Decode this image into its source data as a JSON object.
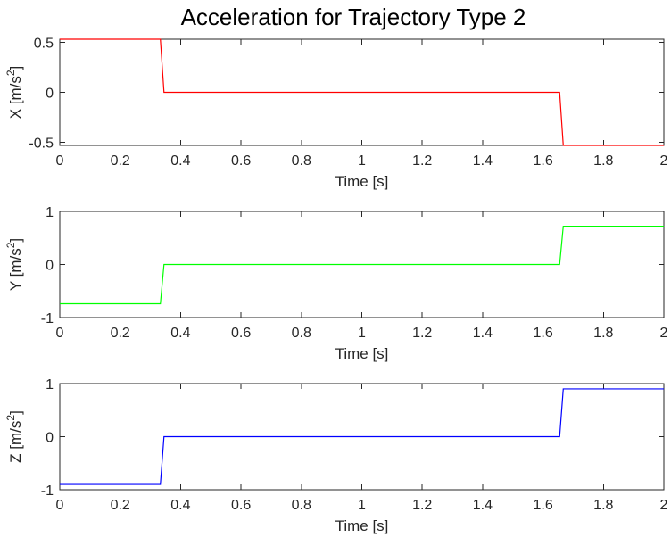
{
  "chart_data": {
    "type": "line",
    "title": "Acceleration for Trajectory Type 2",
    "subplots": [
      {
        "id": "x",
        "xlabel": "Time [s]",
        "ylabel_base": "X [m/s",
        "ylabel_exp": "2",
        "ylabel_close": "]",
        "xlim": [
          0,
          2
        ],
        "ylim": [
          -0.53,
          0.53
        ],
        "xticks": [
          0,
          0.2,
          0.4,
          0.6,
          0.8,
          1,
          1.2,
          1.4,
          1.6,
          1.8,
          2
        ],
        "xtick_labels": [
          "0",
          "0.2",
          "0.4",
          "0.6",
          "0.8",
          "1",
          "1.2",
          "1.4",
          "1.6",
          "1.8",
          "2"
        ],
        "yticks": [
          -0.5,
          0,
          0.5
        ],
        "ytick_labels": [
          "-0.5",
          "0",
          "0.5"
        ],
        "color": "#ff0000",
        "x": [
          0,
          0.333,
          0.345,
          1.655,
          1.667,
          2
        ],
        "y": [
          0.53,
          0.53,
          0,
          0,
          -0.53,
          -0.53
        ]
      },
      {
        "id": "y",
        "xlabel": "Time [s]",
        "ylabel_base": "Y [m/s",
        "ylabel_exp": "2",
        "ylabel_close": "]",
        "xlim": [
          0,
          2
        ],
        "ylim": [
          -1,
          1
        ],
        "xticks": [
          0,
          0.2,
          0.4,
          0.6,
          0.8,
          1,
          1.2,
          1.4,
          1.6,
          1.8,
          2
        ],
        "xtick_labels": [
          "0",
          "0.2",
          "0.4",
          "0.6",
          "0.8",
          "1",
          "1.2",
          "1.4",
          "1.6",
          "1.8",
          "2"
        ],
        "yticks": [
          -1,
          0,
          1
        ],
        "ytick_labels": [
          "-1",
          "0",
          "1"
        ],
        "color": "#00ff00",
        "x": [
          0,
          0.333,
          0.345,
          1.655,
          1.667,
          2
        ],
        "y": [
          -0.74,
          -0.74,
          0,
          0,
          0.72,
          0.72
        ]
      },
      {
        "id": "z",
        "xlabel": "Time [s]",
        "ylabel_base": "Z [m/s",
        "ylabel_exp": "2",
        "ylabel_close": "]",
        "xlim": [
          0,
          2
        ],
        "ylim": [
          -1,
          1
        ],
        "xticks": [
          0,
          0.2,
          0.4,
          0.6,
          0.8,
          1,
          1.2,
          1.4,
          1.6,
          1.8,
          2
        ],
        "xtick_labels": [
          "0",
          "0.2",
          "0.4",
          "0.6",
          "0.8",
          "1",
          "1.2",
          "1.4",
          "1.6",
          "1.8",
          "2"
        ],
        "yticks": [
          -1,
          0,
          1
        ],
        "ytick_labels": [
          "-1",
          "0",
          "1"
        ],
        "color": "#0000ff",
        "x": [
          0,
          0.333,
          0.345,
          1.655,
          1.667,
          2
        ],
        "y": [
          -0.9,
          -0.9,
          0,
          0,
          0.9,
          0.9
        ]
      }
    ]
  }
}
